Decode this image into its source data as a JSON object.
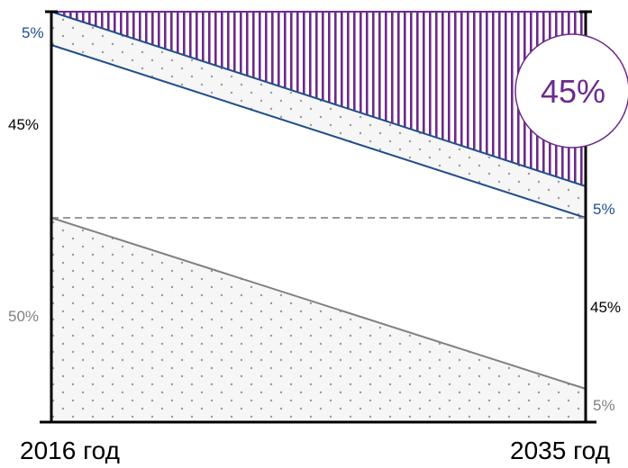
{
  "colors": {
    "purple": "#6d2a8c",
    "blue": "#1f4e8c",
    "gray": "#808080",
    "dashed": "#9a9a9a",
    "black": "#000000",
    "dots": "#9a9a9a"
  },
  "labels": {
    "left_top_5": "5%",
    "left_45": "45%",
    "left_50": "50%",
    "right_5_blue": "5%",
    "right_45": "45%",
    "right_5_gray": "5%",
    "bubble": "45%",
    "year_start": "2016 год",
    "year_end": "2035 год"
  }
}
